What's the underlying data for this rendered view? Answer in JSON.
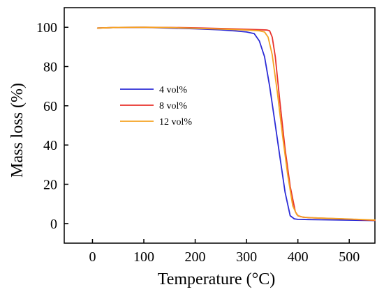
{
  "chart_data": {
    "type": "line",
    "title": "",
    "xlabel": "Temperature (°C)",
    "ylabel": "Mass loss  (%)",
    "xlim": [
      -55,
      550
    ],
    "ylim": [
      -10,
      110
    ],
    "x_ticks": [
      0,
      100,
      200,
      300,
      400,
      500
    ],
    "x_tick_labels": [
      "0",
      "100",
      "200",
      "300",
      "400",
      "500"
    ],
    "y_ticks": [
      0,
      20,
      40,
      60,
      80,
      100
    ],
    "y_tick_labels": [
      "0",
      "20",
      "40",
      "60",
      "80",
      "100"
    ],
    "grid": false,
    "legend_position": "center-left",
    "series": [
      {
        "name": "4 vol%",
        "color": "#2b2bd6",
        "x": [
          10,
          50,
          100,
          150,
          200,
          250,
          280,
          300,
          315,
          325,
          335,
          345,
          355,
          365,
          375,
          385,
          393,
          400,
          420,
          450,
          500,
          550
        ],
        "y": [
          99.6,
          99.9,
          100,
          99.6,
          99.2,
          98.7,
          98.1,
          97.6,
          96.8,
          93,
          85,
          70,
          52,
          34,
          16,
          4,
          2.4,
          2.1,
          2,
          1.9,
          1.7,
          1.5
        ]
      },
      {
        "name": "8 vol%",
        "color": "#e8332c",
        "x": [
          10,
          50,
          100,
          150,
          200,
          250,
          300,
          330,
          340,
          345,
          350,
          356,
          365,
          375,
          385,
          395,
          400,
          410,
          430,
          460,
          500,
          550
        ],
        "y": [
          99.6,
          99.9,
          100,
          99.9,
          99.7,
          99.4,
          99,
          98.7,
          98.6,
          98.2,
          95,
          85,
          62,
          38,
          19,
          6,
          4,
          3.2,
          2.9,
          2.6,
          2.2,
          1.6
        ]
      },
      {
        "name": "12 vol%",
        "color": "#f5a323",
        "x": [
          10,
          50,
          100,
          150,
          200,
          250,
          300,
          325,
          335,
          342,
          350,
          360,
          370,
          380,
          390,
          398,
          405,
          420,
          450,
          500,
          550
        ],
        "y": [
          99.6,
          99.9,
          100,
          99.8,
          99.5,
          99.1,
          98.6,
          98.2,
          97.6,
          95,
          86,
          67,
          45,
          25,
          9,
          4.5,
          3.5,
          3,
          2.7,
          2.3,
          1.8
        ]
      }
    ]
  }
}
